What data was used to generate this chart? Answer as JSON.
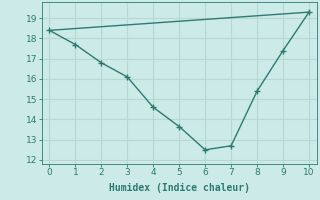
{
  "xlabel": "Humidex (Indice chaleur)",
  "background_color": "#cceae7",
  "grid_color": "#b8d8d4",
  "line_color": "#2d7a72",
  "line1_x": [
    0,
    1,
    2,
    3,
    4,
    5,
    6,
    7,
    8,
    9,
    10
  ],
  "line1_y": [
    18.4,
    17.7,
    16.8,
    16.1,
    14.6,
    13.65,
    12.5,
    12.7,
    15.4,
    17.4,
    19.3
  ],
  "line2_x": [
    0,
    10
  ],
  "line2_y": [
    18.4,
    19.3
  ],
  "xlim": [
    -0.3,
    10.3
  ],
  "ylim": [
    11.8,
    19.8
  ],
  "xticks": [
    0,
    1,
    2,
    3,
    4,
    5,
    6,
    7,
    8,
    9,
    10
  ],
  "yticks": [
    12,
    13,
    14,
    15,
    16,
    17,
    18,
    19
  ],
  "markersize": 4,
  "linewidth": 1.0,
  "xlabel_fontsize": 7,
  "tick_fontsize": 6.5
}
